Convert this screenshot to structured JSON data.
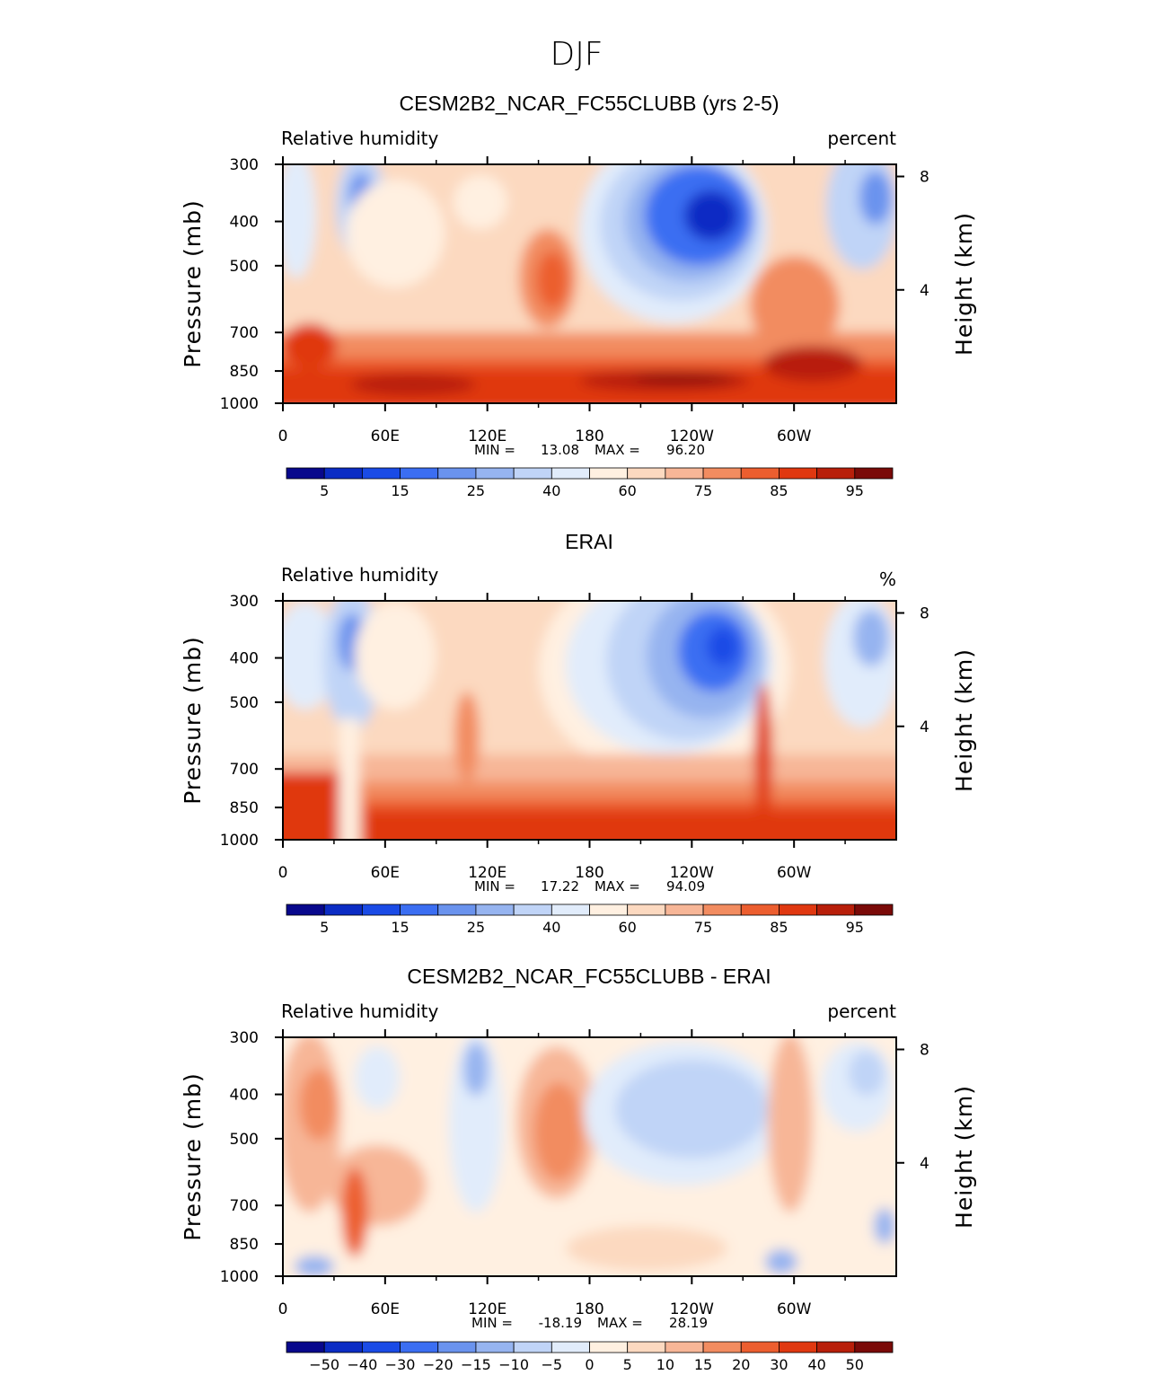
{
  "figure": {
    "title": "DJF"
  },
  "colorbars": {
    "absolute": {
      "colors": [
        "#08088c",
        "#0b2cc4",
        "#1a4be6",
        "#3b6ef2",
        "#6a93ee",
        "#96b4f0",
        "#c0d4f7",
        "#e1ecfb",
        "#fff0e1",
        "#fcd9c0",
        "#f7b697",
        "#f28c60",
        "#ec5e2f",
        "#e03810",
        "#b81f0a",
        "#7a0a08"
      ],
      "labels": [
        "5",
        "15",
        "25",
        "40",
        "60",
        "75",
        "85",
        "95"
      ]
    },
    "difference": {
      "colors": [
        "#08088c",
        "#0b2cc4",
        "#1a4be6",
        "#3b6ef2",
        "#6a93ee",
        "#96b4f0",
        "#c0d4f7",
        "#e1ecfb",
        "#fff0e1",
        "#fcd9c0",
        "#f7b697",
        "#f28c60",
        "#ec5e2f",
        "#e03810",
        "#b81f0a",
        "#7a0a08"
      ],
      "labels": [
        "-50",
        "-40",
        "-30",
        "-20",
        "-15",
        "-10",
        "-5",
        "0",
        "5",
        "10",
        "15",
        "20",
        "30",
        "40",
        "50"
      ]
    }
  },
  "chart_data": [
    {
      "type": "heatmap",
      "title": "CESM2B2_NCAR_FC55CLUBB (yrs 2-5)",
      "left_subtitle": "Relative humidity",
      "right_subtitle": "percent",
      "xlabel": "",
      "ylabel": "Pressure (mb)",
      "y2label": "Height (km)",
      "x_tick_labels": [
        "0",
        "60E",
        "120E",
        "180",
        "120W",
        "60W"
      ],
      "y_tick_labels": [
        "300",
        "400",
        "500",
        "700",
        "850",
        "1000"
      ],
      "y2_tick_labels": [
        "8",
        "4"
      ],
      "ylim": [
        1000,
        300
      ],
      "xlim": [
        0,
        360
      ],
      "min_label": "MIN =",
      "min_value": "13.08",
      "max_label": "MAX =",
      "max_value": "96.20",
      "colorbar": "absolute"
    },
    {
      "type": "heatmap",
      "title": "ERAI",
      "left_subtitle": "Relative humidity",
      "right_subtitle": "%",
      "xlabel": "",
      "ylabel": "Pressure (mb)",
      "y2label": "Height (km)",
      "x_tick_labels": [
        "0",
        "60E",
        "120E",
        "180",
        "120W",
        "60W"
      ],
      "y_tick_labels": [
        "300",
        "400",
        "500",
        "700",
        "850",
        "1000"
      ],
      "y2_tick_labels": [
        "8",
        "4"
      ],
      "ylim": [
        1000,
        300
      ],
      "xlim": [
        0,
        360
      ],
      "min_label": "MIN =",
      "min_value": "17.22",
      "max_label": "MAX =",
      "max_value": "94.09",
      "colorbar": "absolute"
    },
    {
      "type": "heatmap",
      "title": "CESM2B2_NCAR_FC55CLUBB - ERAI",
      "left_subtitle": "Relative humidity",
      "right_subtitle": "percent",
      "xlabel": "",
      "ylabel": "Pressure (mb)",
      "y2label": "Height (km)",
      "x_tick_labels": [
        "0",
        "60E",
        "120E",
        "180",
        "120W",
        "60W"
      ],
      "y_tick_labels": [
        "300",
        "400",
        "500",
        "700",
        "850",
        "1000"
      ],
      "y2_tick_labels": [
        "8",
        "4"
      ],
      "ylim": [
        1000,
        300
      ],
      "xlim": [
        0,
        360
      ],
      "min_label": "MIN =",
      "min_value": "-18.19",
      "max_label": "MAX =",
      "max_value": "28.19",
      "colorbar": "difference"
    }
  ]
}
